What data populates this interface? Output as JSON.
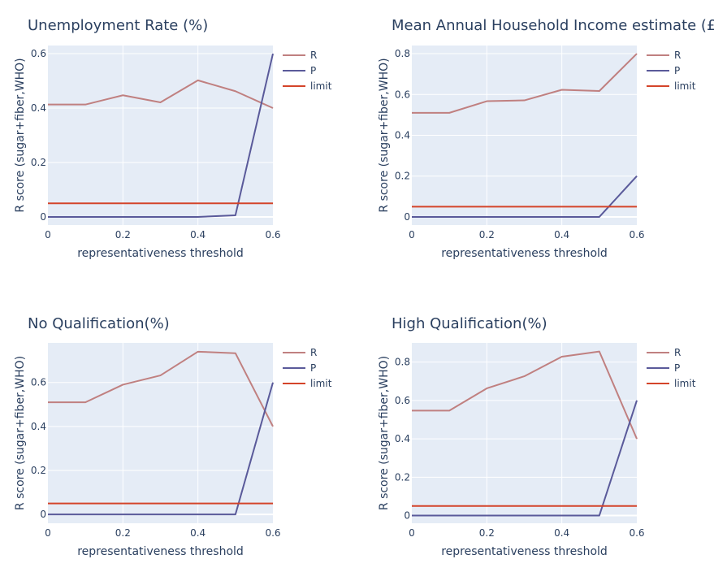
{
  "chart_data": [
    {
      "type": "line",
      "title": "Unemployment Rate (%)",
      "xlabel": "representativeness threshold",
      "ylabel": "R score (sugar+fiber,WHO)",
      "x": [
        0,
        0.1,
        0.2,
        0.3,
        0.4,
        0.5,
        0.6
      ],
      "xlim": [
        0,
        0.6
      ],
      "ylim": [
        -0.03,
        0.63
      ],
      "xticks": [
        "0",
        "0.2",
        "0.4",
        "0.6"
      ],
      "yticks": [
        "0",
        "0.2",
        "0.4",
        "0.6"
      ],
      "grid": true,
      "legend_position": "top-right",
      "series": [
        {
          "name": "R",
          "color": "#c08080",
          "values": [
            0.413,
            0.413,
            0.447,
            0.421,
            0.502,
            0.462,
            0.4
          ]
        },
        {
          "name": "P",
          "color": "#5a5a9a",
          "values": [
            0,
            0,
            0,
            0,
            0,
            0.006,
            0.6
          ]
        },
        {
          "name": "limit",
          "color": "#d4442a",
          "values": [
            0.05,
            0.05,
            0.05,
            0.05,
            0.05,
            0.05,
            0.05
          ]
        }
      ]
    },
    {
      "type": "line",
      "title": "Mean Annual Household Income estimate (£",
      "xlabel": "representativeness threshold",
      "ylabel": "R score (sugar+fiber,WHO)",
      "x": [
        0,
        0.1,
        0.2,
        0.3,
        0.4,
        0.5,
        0.6
      ],
      "xlim": [
        0,
        0.6
      ],
      "ylim": [
        -0.04,
        0.84
      ],
      "xticks": [
        "0",
        "0.2",
        "0.4",
        "0.6"
      ],
      "yticks": [
        "0",
        "0.2",
        "0.4",
        "0.6",
        "0.8"
      ],
      "grid": true,
      "legend_position": "top-right",
      "series": [
        {
          "name": "R",
          "color": "#c08080",
          "values": [
            0.51,
            0.51,
            0.567,
            0.571,
            0.623,
            0.617,
            0.8
          ]
        },
        {
          "name": "P",
          "color": "#5a5a9a",
          "values": [
            0,
            0,
            0,
            0,
            0,
            0,
            0.2
          ]
        },
        {
          "name": "limit",
          "color": "#d4442a",
          "values": [
            0.05,
            0.05,
            0.05,
            0.05,
            0.05,
            0.05,
            0.05
          ]
        }
      ]
    },
    {
      "type": "line",
      "title": "No Qualification(%)",
      "xlabel": "representativeness threshold",
      "ylabel": "R score (sugar+fiber,WHO)",
      "x": [
        0,
        0.1,
        0.2,
        0.3,
        0.4,
        0.5,
        0.6
      ],
      "xlim": [
        0,
        0.6
      ],
      "ylim": [
        -0.04,
        0.78
      ],
      "xticks": [
        "0",
        "0.2",
        "0.4",
        "0.6"
      ],
      "yticks": [
        "0",
        "0.2",
        "0.4",
        "0.6"
      ],
      "grid": true,
      "legend_position": "top-right",
      "series": [
        {
          "name": "R",
          "color": "#c08080",
          "values": [
            0.51,
            0.51,
            0.59,
            0.632,
            0.74,
            0.733,
            0.4
          ]
        },
        {
          "name": "P",
          "color": "#5a5a9a",
          "values": [
            0,
            0,
            0,
            0,
            0,
            0,
            0.6
          ]
        },
        {
          "name": "limit",
          "color": "#d4442a",
          "values": [
            0.05,
            0.05,
            0.05,
            0.05,
            0.05,
            0.05,
            0.05
          ]
        }
      ]
    },
    {
      "type": "line",
      "title": "High Qualification(%)",
      "xlabel": "representativeness threshold",
      "ylabel": "R score (sugar+fiber,WHO)",
      "x": [
        0,
        0.1,
        0.2,
        0.3,
        0.4,
        0.5,
        0.6
      ],
      "xlim": [
        0,
        0.6
      ],
      "ylim": [
        -0.04,
        0.9
      ],
      "xticks": [
        "0",
        "0.2",
        "0.4",
        "0.6"
      ],
      "yticks": [
        "0",
        "0.2",
        "0.4",
        "0.6",
        "0.8"
      ],
      "grid": true,
      "legend_position": "top-right",
      "series": [
        {
          "name": "R",
          "color": "#c08080",
          "values": [
            0.547,
            0.547,
            0.663,
            0.726,
            0.828,
            0.855,
            0.4
          ]
        },
        {
          "name": "P",
          "color": "#5a5a9a",
          "values": [
            0,
            0,
            0,
            0,
            0,
            0,
            0.6
          ]
        },
        {
          "name": "limit",
          "color": "#d4442a",
          "values": [
            0.05,
            0.05,
            0.05,
            0.05,
            0.05,
            0.05,
            0.05
          ]
        }
      ]
    }
  ]
}
